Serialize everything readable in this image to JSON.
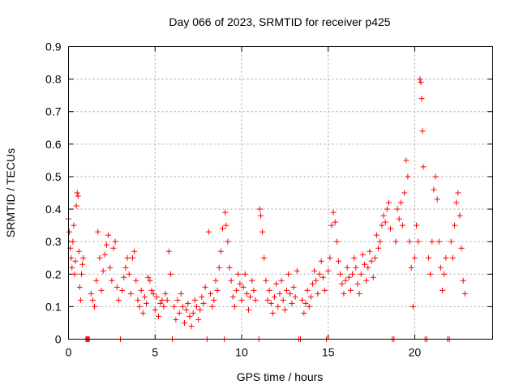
{
  "chart_data": {
    "type": "scatter",
    "title": "Day 066 of 2023, SRMTID for receiver p425",
    "xlabel": "GPS time / hours",
    "ylabel": "SRMTID / TECUs",
    "xlim": [
      0,
      24.5
    ],
    "ylim": [
      0,
      0.9
    ],
    "xticks": [
      0,
      5,
      10,
      15,
      20
    ],
    "yticks": [
      0,
      0.1,
      0.2,
      0.3,
      0.4,
      0.5,
      0.6,
      0.7,
      0.8,
      0.9
    ],
    "grid": true,
    "marker": "+",
    "color": "#ff0000",
    "series": [
      {
        "name": "SRMTID",
        "points": [
          [
            0.0,
            0.37
          ],
          [
            0.05,
            0.33
          ],
          [
            0.1,
            0.28
          ],
          [
            0.15,
            0.25
          ],
          [
            0.2,
            0.22
          ],
          [
            0.25,
            0.3
          ],
          [
            0.3,
            0.35
          ],
          [
            0.35,
            0.2
          ],
          [
            0.4,
            0.24
          ],
          [
            0.45,
            0.41
          ],
          [
            0.5,
            0.45
          ],
          [
            0.55,
            0.44
          ],
          [
            0.6,
            0.27
          ],
          [
            0.65,
            0.16
          ],
          [
            0.7,
            0.12
          ],
          [
            0.75,
            0.2
          ],
          [
            0.8,
            0.23
          ],
          [
            0.85,
            0.25
          ],
          [
            1.0,
            0.0
          ],
          [
            1.05,
            0.0
          ],
          [
            1.1,
            0.0
          ],
          [
            1.15,
            0.0
          ],
          [
            1.2,
            0.0
          ],
          [
            1.3,
            0.14
          ],
          [
            1.4,
            0.12
          ],
          [
            1.5,
            0.1
          ],
          [
            1.6,
            0.18
          ],
          [
            1.7,
            0.33
          ],
          [
            1.8,
            0.25
          ],
          [
            1.9,
            0.15
          ],
          [
            2.0,
            0.21
          ],
          [
            2.1,
            0.26
          ],
          [
            2.2,
            0.29
          ],
          [
            2.3,
            0.32
          ],
          [
            2.4,
            0.22
          ],
          [
            2.5,
            0.18
          ],
          [
            2.6,
            0.28
          ],
          [
            2.7,
            0.3
          ],
          [
            2.8,
            0.16
          ],
          [
            2.9,
            0.12
          ],
          [
            3.0,
            0.0
          ],
          [
            3.1,
            0.15
          ],
          [
            3.2,
            0.19
          ],
          [
            3.3,
            0.22
          ],
          [
            3.4,
            0.25
          ],
          [
            3.5,
            0.2
          ],
          [
            3.6,
            0.14
          ],
          [
            3.7,
            0.25
          ],
          [
            3.8,
            0.27
          ],
          [
            3.9,
            0.18
          ],
          [
            4.0,
            0.12
          ],
          [
            4.1,
            0.1
          ],
          [
            4.2,
            0.15
          ],
          [
            4.3,
            0.08
          ],
          [
            4.4,
            0.13
          ],
          [
            4.5,
            0.11
          ],
          [
            4.6,
            0.19
          ],
          [
            4.7,
            0.18
          ],
          [
            4.8,
            0.15
          ],
          [
            4.9,
            0.14
          ],
          [
            5.0,
            0.09
          ],
          [
            5.1,
            0.13
          ],
          [
            5.2,
            0.07
          ],
          [
            5.3,
            0.11
          ],
          [
            5.4,
            0.12
          ],
          [
            5.5,
            0.1
          ],
          [
            5.6,
            0.14
          ],
          [
            5.7,
            0.12
          ],
          [
            5.8,
            0.27
          ],
          [
            5.9,
            0.2
          ],
          [
            6.0,
            0.0
          ],
          [
            6.1,
            0.1
          ],
          [
            6.2,
            0.06
          ],
          [
            6.3,
            0.12
          ],
          [
            6.4,
            0.08
          ],
          [
            6.5,
            0.14
          ],
          [
            6.6,
            0.1
          ],
          [
            6.7,
            0.05
          ],
          [
            6.8,
            0.09
          ],
          [
            6.9,
            0.11
          ],
          [
            7.0,
            0.07
          ],
          [
            7.1,
            0.04
          ],
          [
            7.2,
            0.08
          ],
          [
            7.3,
            0.12
          ],
          [
            7.4,
            0.1
          ],
          [
            7.5,
            0.06
          ],
          [
            7.6,
            0.09
          ],
          [
            7.7,
            0.13
          ],
          [
            7.8,
            0.11
          ],
          [
            7.9,
            0.16
          ],
          [
            8.0,
            0.0
          ],
          [
            8.1,
            0.33
          ],
          [
            8.2,
            0.14
          ],
          [
            8.3,
            0.1
          ],
          [
            8.4,
            0.12
          ],
          [
            8.5,
            0.18
          ],
          [
            8.6,
            0.15
          ],
          [
            8.7,
            0.22
          ],
          [
            8.8,
            0.27
          ],
          [
            8.9,
            0.34
          ],
          [
            9.0,
            0.0
          ],
          [
            9.05,
            0.39
          ],
          [
            9.1,
            0.35
          ],
          [
            9.2,
            0.3
          ],
          [
            9.3,
            0.22
          ],
          [
            9.4,
            0.18
          ],
          [
            9.5,
            0.13
          ],
          [
            9.6,
            0.1
          ],
          [
            9.7,
            0.15
          ],
          [
            9.8,
            0.2
          ],
          [
            9.9,
            0.17
          ],
          [
            10.0,
            0.12
          ],
          [
            10.1,
            0.16
          ],
          [
            10.2,
            0.2
          ],
          [
            10.3,
            0.14
          ],
          [
            10.4,
            0.09
          ],
          [
            10.5,
            0.13
          ],
          [
            10.6,
            0.18
          ],
          [
            10.7,
            0.15
          ],
          [
            10.8,
            0.12
          ],
          [
            11.0,
            0.0
          ],
          [
            11.05,
            0.4
          ],
          [
            11.1,
            0.38
          ],
          [
            11.2,
            0.33
          ],
          [
            11.3,
            0.25
          ],
          [
            11.4,
            0.18
          ],
          [
            11.5,
            0.12
          ],
          [
            11.6,
            0.15
          ],
          [
            11.7,
            0.11
          ],
          [
            11.8,
            0.08
          ],
          [
            11.9,
            0.13
          ],
          [
            12.0,
            0.17
          ],
          [
            12.1,
            0.1
          ],
          [
            12.2,
            0.14
          ],
          [
            12.3,
            0.18
          ],
          [
            12.4,
            0.12
          ],
          [
            12.5,
            0.09
          ],
          [
            12.6,
            0.15
          ],
          [
            12.7,
            0.2
          ],
          [
            12.8,
            0.14
          ],
          [
            12.9,
            0.11
          ],
          [
            13.0,
            0.16
          ],
          [
            13.1,
            0.13
          ],
          [
            13.2,
            0.21
          ],
          [
            13.3,
            0.0
          ],
          [
            13.4,
            0.0
          ],
          [
            13.5,
            0.12
          ],
          [
            13.6,
            0.08
          ],
          [
            13.7,
            0.11
          ],
          [
            13.8,
            0.15
          ],
          [
            13.9,
            0.1
          ],
          [
            14.0,
            0.13
          ],
          [
            14.1,
            0.17
          ],
          [
            14.2,
            0.21
          ],
          [
            14.3,
            0.18
          ],
          [
            14.4,
            0.14
          ],
          [
            14.5,
            0.2
          ],
          [
            14.6,
            0.24
          ],
          [
            14.7,
            0.19
          ],
          [
            14.8,
            0.15
          ],
          [
            14.9,
            0.0
          ],
          [
            15.0,
            0.21
          ],
          [
            15.1,
            0.25
          ],
          [
            15.2,
            0.35
          ],
          [
            15.3,
            0.39
          ],
          [
            15.4,
            0.36
          ],
          [
            15.5,
            0.3
          ],
          [
            15.6,
            0.24
          ],
          [
            15.7,
            0.2
          ],
          [
            15.8,
            0.17
          ],
          [
            15.9,
            0.14
          ],
          [
            16.0,
            0.18
          ],
          [
            16.1,
            0.22
          ],
          [
            16.2,
            0.19
          ],
          [
            16.3,
            0.15
          ],
          [
            16.4,
            0.2
          ],
          [
            16.5,
            0.25
          ],
          [
            16.6,
            0.22
          ],
          [
            16.7,
            0.17
          ],
          [
            16.8,
            0.14
          ],
          [
            16.9,
            0.2
          ],
          [
            17.0,
            0.26
          ],
          [
            17.1,
            0.23
          ],
          [
            17.2,
            0.18
          ],
          [
            17.3,
            0.22
          ],
          [
            17.4,
            0.27
          ],
          [
            17.5,
            0.24
          ],
          [
            17.6,
            0.19
          ],
          [
            17.7,
            0.25
          ],
          [
            17.8,
            0.32
          ],
          [
            17.9,
            0.28
          ],
          [
            18.0,
            0.3
          ],
          [
            18.1,
            0.35
          ],
          [
            18.2,
            0.38
          ],
          [
            18.3,
            0.36
          ],
          [
            18.4,
            0.4
          ],
          [
            18.5,
            0.42
          ],
          [
            18.6,
            0.34
          ],
          [
            18.7,
            0.0
          ],
          [
            18.8,
            0.0
          ],
          [
            18.9,
            0.3
          ],
          [
            19.0,
            0.4
          ],
          [
            19.1,
            0.37
          ],
          [
            19.2,
            0.42
          ],
          [
            19.3,
            0.35
          ],
          [
            19.4,
            0.45
          ],
          [
            19.5,
            0.55
          ],
          [
            19.6,
            0.5
          ],
          [
            19.7,
            0.3
          ],
          [
            19.8,
            0.22
          ],
          [
            19.9,
            0.1
          ],
          [
            20.0,
            0.25
          ],
          [
            20.1,
            0.35
          ],
          [
            20.2,
            0.3
          ],
          [
            20.3,
            0.8
          ],
          [
            20.35,
            0.79
          ],
          [
            20.4,
            0.74
          ],
          [
            20.45,
            0.64
          ],
          [
            20.5,
            0.53
          ],
          [
            20.6,
            0.0
          ],
          [
            20.7,
            0.0
          ],
          [
            20.8,
            0.25
          ],
          [
            20.9,
            0.2
          ],
          [
            21.0,
            0.3
          ],
          [
            21.1,
            0.46
          ],
          [
            21.2,
            0.5
          ],
          [
            21.3,
            0.43
          ],
          [
            21.4,
            0.3
          ],
          [
            21.5,
            0.22
          ],
          [
            21.6,
            0.15
          ],
          [
            21.7,
            0.2
          ],
          [
            21.8,
            0.25
          ],
          [
            21.9,
            0.0
          ],
          [
            22.0,
            0.0
          ],
          [
            22.1,
            0.3
          ],
          [
            22.2,
            0.25
          ],
          [
            22.3,
            0.35
          ],
          [
            22.4,
            0.42
          ],
          [
            22.5,
            0.45
          ],
          [
            22.6,
            0.38
          ],
          [
            22.7,
            0.28
          ],
          [
            22.8,
            0.18
          ],
          [
            22.9,
            0.14
          ]
        ]
      }
    ]
  }
}
